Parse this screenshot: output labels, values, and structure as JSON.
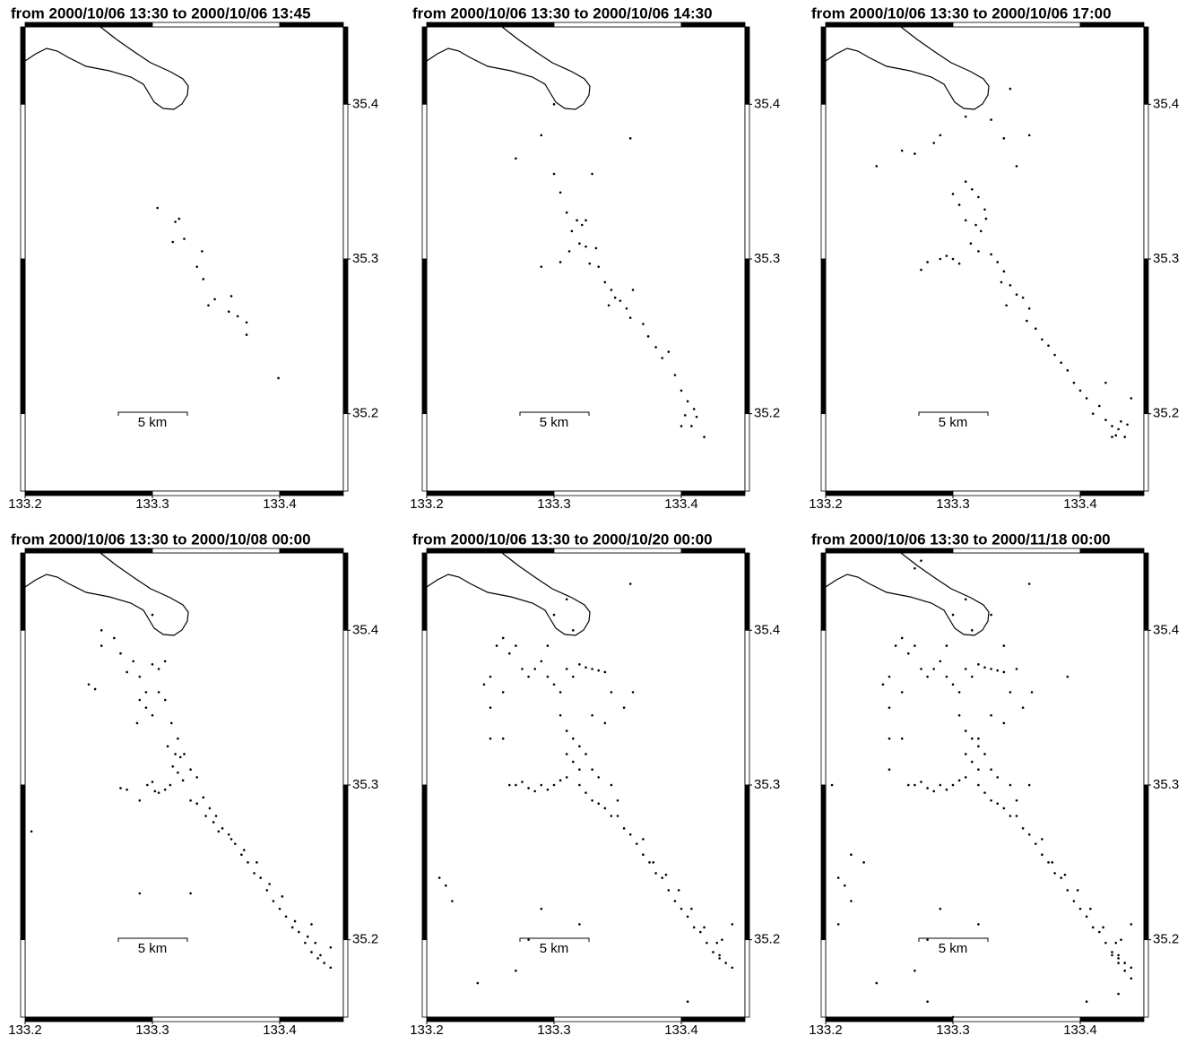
{
  "chart_data": [
    {
      "type": "scatter",
      "title": "from 2000/10/06 13:30 to 2000/10/06 13:45",
      "scale_label": "5 km",
      "xlim": [
        133.2,
        133.45
      ],
      "ylim": [
        35.15,
        35.45
      ],
      "xticks": [
        133.2,
        133.3,
        133.4
      ],
      "yticks": [
        35.2,
        35.3,
        35.4
      ],
      "color": "#000000",
      "x": [
        133.304,
        133.318,
        133.321,
        133.316,
        133.325,
        133.339,
        133.335,
        133.34,
        133.344,
        133.349,
        133.362,
        133.36,
        133.367,
        133.374,
        133.374,
        133.399
      ],
      "y": [
        35.333,
        35.324,
        35.326,
        35.311,
        35.313,
        35.305,
        35.295,
        35.287,
        35.27,
        35.274,
        35.276,
        35.266,
        35.263,
        35.259,
        35.251,
        35.223
      ]
    },
    {
      "type": "scatter",
      "title": "from 2000/10/06 13:30 to 2000/10/06 14:30",
      "scale_label": "5 km",
      "xlim": [
        133.2,
        133.45
      ],
      "ylim": [
        35.15,
        35.45
      ],
      "xticks": [
        133.2,
        133.3,
        133.4
      ],
      "yticks": [
        35.2,
        35.3,
        35.4
      ],
      "color": "#000000",
      "x": [
        133.27,
        133.29,
        133.3,
        133.36,
        133.33,
        133.3,
        133.305,
        133.31,
        133.318,
        133.322,
        133.325,
        133.314,
        133.32,
        133.312,
        133.325,
        133.333,
        133.328,
        133.335,
        133.305,
        133.29,
        133.34,
        133.345,
        133.348,
        133.343,
        133.352,
        133.357,
        133.36,
        133.362,
        133.37,
        133.374,
        133.38,
        133.385,
        133.39,
        133.395,
        133.4,
        133.405,
        133.41,
        133.403,
        133.412,
        133.408,
        133.4,
        133.418
      ],
      "y": [
        35.365,
        35.38,
        35.4,
        35.378,
        35.355,
        35.355,
        35.343,
        35.33,
        35.325,
        35.322,
        35.325,
        35.318,
        35.31,
        35.305,
        35.308,
        35.307,
        35.297,
        35.295,
        35.298,
        35.295,
        35.285,
        35.28,
        35.275,
        35.27,
        35.273,
        35.268,
        35.262,
        35.28,
        35.258,
        35.25,
        35.243,
        35.236,
        35.24,
        35.225,
        35.215,
        35.208,
        35.203,
        35.199,
        35.198,
        35.192,
        35.192,
        35.185
      ]
    },
    {
      "type": "scatter",
      "title": "from 2000/10/06 13:30 to 2000/10/06 17:00",
      "scale_label": "5 km",
      "xlim": [
        133.2,
        133.45
      ],
      "ylim": [
        35.15,
        35.45
      ],
      "xticks": [
        133.2,
        133.3,
        133.4
      ],
      "yticks": [
        35.2,
        35.3,
        35.4
      ],
      "color": "#000000",
      "x": [
        133.26,
        133.27,
        133.285,
        133.29,
        133.31,
        133.33,
        133.345,
        133.34,
        133.31,
        133.3,
        133.305,
        133.315,
        133.32,
        133.325,
        133.31,
        133.318,
        133.322,
        133.326,
        133.314,
        133.32,
        133.28,
        133.29,
        133.295,
        133.3,
        133.305,
        133.275,
        133.33,
        133.335,
        133.34,
        133.338,
        133.345,
        133.35,
        133.342,
        133.355,
        133.36,
        133.358,
        133.365,
        133.37,
        133.375,
        133.38,
        133.385,
        133.39,
        133.395,
        133.4,
        133.405,
        133.41,
        133.415,
        133.42,
        133.425,
        133.43,
        133.432,
        133.428,
        133.435,
        133.437,
        133.42,
        133.44,
        133.36,
        133.24,
        133.35,
        133.425
      ],
      "y": [
        35.37,
        35.368,
        35.375,
        35.38,
        35.392,
        35.39,
        35.41,
        35.378,
        35.35,
        35.342,
        35.335,
        35.345,
        35.34,
        35.332,
        35.325,
        35.322,
        35.318,
        35.326,
        35.31,
        35.305,
        35.298,
        35.3,
        35.302,
        35.3,
        35.297,
        35.293,
        35.303,
        35.298,
        35.292,
        35.285,
        35.283,
        35.277,
        35.27,
        35.275,
        35.268,
        35.26,
        35.255,
        35.248,
        35.244,
        35.238,
        35.233,
        35.228,
        35.22,
        35.215,
        35.21,
        35.2,
        35.205,
        35.196,
        35.192,
        35.19,
        35.195,
        35.186,
        35.185,
        35.193,
        35.22,
        35.21,
        35.38,
        35.36,
        35.36,
        35.185
      ]
    },
    {
      "type": "scatter",
      "title": "from 2000/10/06 13:30 to 2000/10/08 00:00",
      "scale_label": "5 km",
      "xlim": [
        133.2,
        133.45
      ],
      "ylim": [
        35.15,
        35.45
      ],
      "xticks": [
        133.2,
        133.3,
        133.4
      ],
      "yticks": [
        35.2,
        35.3,
        35.4
      ],
      "color": "#000000",
      "x": [
        133.25,
        133.255,
        133.26,
        133.27,
        133.275,
        133.28,
        133.285,
        133.29,
        133.295,
        133.3,
        133.305,
        133.31,
        133.315,
        133.32,
        133.325,
        133.33,
        133.335,
        133.34,
        133.345,
        133.35,
        133.355,
        133.36,
        133.365,
        133.37,
        133.375,
        133.38,
        133.385,
        133.39,
        133.395,
        133.4,
        133.405,
        133.41,
        133.415,
        133.42,
        133.425,
        133.43,
        133.435,
        133.44,
        133.432,
        133.428,
        133.312,
        133.318,
        133.322,
        133.316,
        133.32,
        133.324,
        133.314,
        133.31,
        133.302,
        133.296,
        133.28,
        133.275,
        133.29,
        133.305,
        133.3,
        133.295,
        133.288,
        133.29,
        133.3,
        133.305,
        133.33,
        133.335,
        133.342,
        133.348,
        133.352,
        133.362,
        133.372,
        133.382,
        133.392,
        133.402,
        133.412,
        133.422,
        133.205,
        133.29,
        133.33,
        133.425,
        133.44,
        133.26,
        133.3,
        133.31
      ],
      "y": [
        35.365,
        35.362,
        35.39,
        35.395,
        35.385,
        35.373,
        35.38,
        35.37,
        35.36,
        35.378,
        35.375,
        35.355,
        35.34,
        35.33,
        35.32,
        35.31,
        35.305,
        35.292,
        35.285,
        35.28,
        35.272,
        35.268,
        35.262,
        35.255,
        35.25,
        35.243,
        35.24,
        35.232,
        35.225,
        35.22,
        35.215,
        35.208,
        35.205,
        35.198,
        35.192,
        35.188,
        35.185,
        35.182,
        35.19,
        35.198,
        35.325,
        35.32,
        35.318,
        35.312,
        35.308,
        35.303,
        35.3,
        35.297,
        35.296,
        35.3,
        35.297,
        35.298,
        35.29,
        35.295,
        35.302,
        35.35,
        35.34,
        35.355,
        35.345,
        35.36,
        35.29,
        35.288,
        35.28,
        35.276,
        35.27,
        35.265,
        35.258,
        35.25,
        35.236,
        35.228,
        35.212,
        35.202,
        35.27,
        35.23,
        35.23,
        35.21,
        35.195,
        35.4,
        35.41,
        35.38
      ]
    },
    {
      "type": "scatter",
      "title": "from 2000/10/06 13:30 to 2000/10/20 00:00",
      "scale_label": "5 km",
      "xlim": [
        133.2,
        133.45
      ],
      "ylim": [
        35.15,
        35.45
      ],
      "xticks": [
        133.2,
        133.3,
        133.4
      ],
      "yticks": [
        35.2,
        35.3,
        35.4
      ],
      "color": "#000000",
      "x": [
        133.245,
        133.25,
        133.255,
        133.26,
        133.265,
        133.27,
        133.275,
        133.28,
        133.285,
        133.29,
        133.295,
        133.3,
        133.305,
        133.31,
        133.315,
        133.32,
        133.325,
        133.33,
        133.335,
        133.34,
        133.345,
        133.35,
        133.355,
        133.36,
        133.365,
        133.37,
        133.375,
        133.38,
        133.385,
        133.39,
        133.395,
        133.4,
        133.405,
        133.41,
        133.415,
        133.42,
        133.425,
        133.43,
        133.435,
        133.44,
        133.305,
        133.31,
        133.315,
        133.32,
        133.325,
        133.33,
        133.335,
        133.32,
        133.315,
        133.31,
        133.27,
        133.275,
        133.28,
        133.285,
        133.29,
        133.295,
        133.3,
        133.305,
        133.31,
        133.32,
        133.325,
        133.33,
        133.335,
        133.34,
        133.345,
        133.35,
        133.345,
        133.34,
        133.355,
        133.362,
        133.37,
        133.378,
        133.388,
        133.398,
        133.408,
        133.418,
        133.428,
        133.43,
        133.432,
        133.44,
        133.21,
        133.215,
        133.24,
        133.27,
        133.28,
        133.25,
        133.22,
        133.29,
        133.32,
        133.36,
        133.3,
        133.31,
        133.315,
        133.25,
        133.26,
        133.33,
        133.405,
        133.295,
        133.26,
        133.265
      ],
      "y": [
        35.365,
        35.37,
        35.39,
        35.395,
        35.385,
        35.39,
        35.375,
        35.37,
        35.375,
        35.38,
        35.37,
        35.365,
        35.36,
        35.375,
        35.37,
        35.378,
        35.376,
        35.375,
        35.374,
        35.373,
        35.36,
        35.28,
        35.272,
        35.268,
        35.262,
        35.255,
        35.25,
        35.243,
        35.24,
        35.232,
        35.225,
        35.22,
        35.215,
        35.208,
        35.205,
        35.198,
        35.192,
        35.188,
        35.185,
        35.182,
        35.345,
        35.335,
        35.33,
        35.325,
        35.32,
        35.31,
        35.305,
        35.31,
        35.315,
        35.32,
        35.3,
        35.302,
        35.298,
        35.296,
        35.3,
        35.297,
        35.3,
        35.303,
        35.305,
        35.3,
        35.295,
        35.29,
        35.288,
        35.285,
        35.28,
        35.29,
        35.3,
        35.34,
        35.35,
        35.36,
        35.265,
        35.25,
        35.242,
        35.232,
        35.22,
        35.208,
        35.198,
        35.19,
        35.2,
        35.21,
        35.24,
        35.235,
        35.172,
        35.18,
        35.2,
        35.33,
        35.225,
        35.22,
        35.21,
        35.43,
        35.41,
        35.42,
        35.4,
        35.35,
        35.36,
        35.345,
        35.16,
        35.39,
        35.33,
        35.3
      ]
    },
    {
      "type": "scatter",
      "title": "from 2000/10/06 13:30 to 2000/11/18 00:00",
      "scale_label": "5 km",
      "xlim": [
        133.2,
        133.45
      ],
      "ylim": [
        35.15,
        35.45
      ],
      "xticks": [
        133.2,
        133.3,
        133.4
      ],
      "yticks": [
        35.2,
        35.3,
        35.4
      ],
      "color": "#000000",
      "x": [
        133.245,
        133.25,
        133.255,
        133.26,
        133.265,
        133.27,
        133.275,
        133.28,
        133.285,
        133.29,
        133.295,
        133.3,
        133.305,
        133.31,
        133.315,
        133.32,
        133.325,
        133.33,
        133.335,
        133.34,
        133.345,
        133.35,
        133.355,
        133.36,
        133.365,
        133.37,
        133.375,
        133.38,
        133.385,
        133.39,
        133.395,
        133.4,
        133.405,
        133.41,
        133.415,
        133.42,
        133.425,
        133.43,
        133.435,
        133.44,
        133.305,
        133.31,
        133.315,
        133.32,
        133.325,
        133.33,
        133.335,
        133.32,
        133.315,
        133.31,
        133.27,
        133.275,
        133.28,
        133.285,
        133.29,
        133.295,
        133.3,
        133.305,
        133.31,
        133.32,
        133.325,
        133.33,
        133.335,
        133.34,
        133.345,
        133.35,
        133.345,
        133.34,
        133.355,
        133.362,
        133.37,
        133.378,
        133.388,
        133.398,
        133.408,
        133.418,
        133.428,
        133.43,
        133.432,
        133.44,
        133.21,
        133.215,
        133.24,
        133.27,
        133.28,
        133.25,
        133.22,
        133.29,
        133.32,
        133.36,
        133.3,
        133.31,
        133.315,
        133.25,
        133.26,
        133.33,
        133.405,
        133.295,
        133.26,
        133.265,
        133.27,
        133.275,
        133.43,
        133.425,
        133.435,
        133.22,
        133.23,
        133.25,
        133.34,
        133.35,
        133.36,
        133.39,
        133.3,
        133.28,
        133.43,
        133.44,
        133.21,
        133.205,
        133.32,
        133.33
      ],
      "y": [
        35.365,
        35.37,
        35.39,
        35.395,
        35.385,
        35.39,
        35.375,
        35.37,
        35.375,
        35.38,
        35.37,
        35.365,
        35.36,
        35.375,
        35.37,
        35.378,
        35.376,
        35.375,
        35.374,
        35.373,
        35.36,
        35.28,
        35.272,
        35.268,
        35.262,
        35.255,
        35.25,
        35.243,
        35.24,
        35.232,
        35.225,
        35.22,
        35.215,
        35.208,
        35.205,
        35.198,
        35.192,
        35.188,
        35.185,
        35.182,
        35.345,
        35.335,
        35.33,
        35.325,
        35.32,
        35.31,
        35.305,
        35.31,
        35.315,
        35.32,
        35.3,
        35.302,
        35.298,
        35.296,
        35.3,
        35.297,
        35.3,
        35.303,
        35.305,
        35.3,
        35.295,
        35.29,
        35.288,
        35.285,
        35.28,
        35.29,
        35.3,
        35.34,
        35.35,
        35.36,
        35.265,
        35.25,
        35.242,
        35.232,
        35.22,
        35.208,
        35.198,
        35.19,
        35.2,
        35.21,
        35.24,
        35.235,
        35.172,
        35.18,
        35.2,
        35.33,
        35.225,
        35.22,
        35.21,
        35.43,
        35.41,
        35.42,
        35.4,
        35.35,
        35.36,
        35.345,
        35.16,
        35.39,
        35.33,
        35.3,
        35.44,
        35.445,
        35.185,
        35.19,
        35.18,
        35.255,
        35.25,
        35.31,
        35.39,
        35.375,
        35.3,
        35.37,
        35.15,
        35.16,
        35.165,
        35.175,
        35.21,
        35.3,
        35.33,
        35.41
      ]
    }
  ]
}
